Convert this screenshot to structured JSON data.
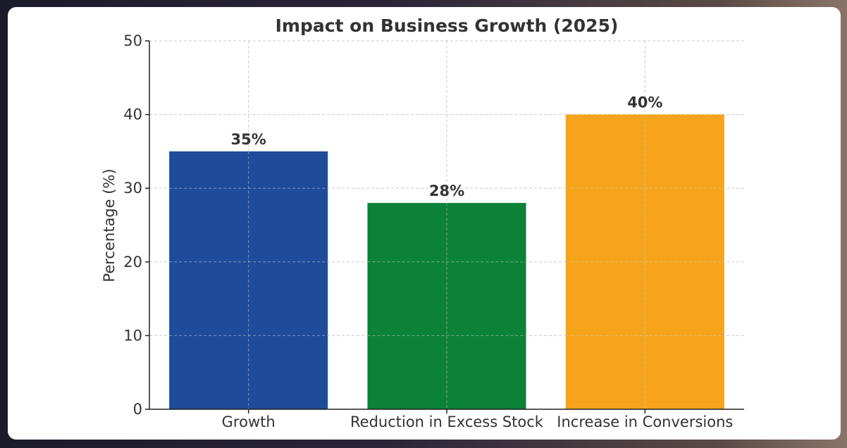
{
  "chart_data": {
    "type": "bar",
    "title": "Impact on Business Growth (2025)",
    "xlabel": "",
    "ylabel": "Percentage (%)",
    "categories": [
      "Growth",
      "Reduction in Excess Stock",
      "Increase in Conversions"
    ],
    "values": [
      35,
      28,
      40
    ],
    "value_labels": [
      "35%",
      "28%",
      "40%"
    ],
    "colors": [
      "#1f4b9b",
      "#0b8238",
      "#f5a41c"
    ],
    "ylim": [
      0,
      50
    ],
    "yticks": [
      0,
      10,
      20,
      30,
      40,
      50
    ],
    "ytick_labels": [
      "0",
      "10",
      "20",
      "30",
      "40",
      "50"
    ],
    "grid": true
  }
}
